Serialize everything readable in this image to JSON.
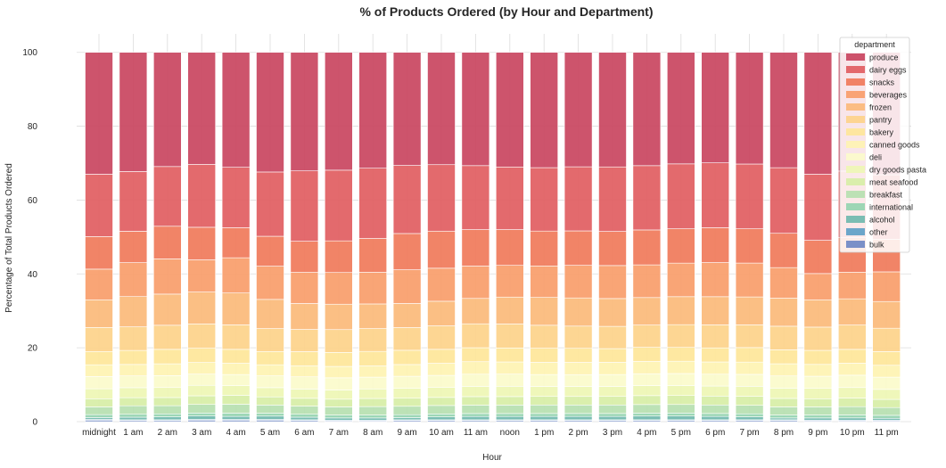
{
  "chart_data": {
    "type": "bar",
    "stacked": true,
    "title": "% of Products Ordered (by Hour and Department)",
    "xlabel": "Hour",
    "ylabel": "Percentage of Total Products Ordered",
    "ylim": [
      0,
      105
    ],
    "yticks": [
      0,
      20,
      40,
      60,
      80,
      100
    ],
    "grid": true,
    "legend_title": "department",
    "legend_position": "top-right",
    "categories": [
      "midnight",
      "1 am",
      "2 am",
      "3 am",
      "4 am",
      "5 am",
      "6 am",
      "7 am",
      "8 am",
      "9 am",
      "10 am",
      "11 am",
      "noon",
      "1 pm",
      "2 pm",
      "3 pm",
      "4 pm",
      "5 pm",
      "6 pm",
      "7 pm",
      "8 pm",
      "9 pm",
      "10 pm",
      "11 pm"
    ],
    "series": [
      {
        "name": "produce",
        "color": "#c9455f",
        "values": [
          33.0,
          32.3,
          30.8,
          29.9,
          31.0,
          32.4,
          32.0,
          32.0,
          31.5,
          30.9,
          30.6,
          30.8,
          31.1,
          31.1,
          30.9,
          30.9,
          30.5,
          29.9,
          29.8,
          30.0,
          31.3,
          33.0,
          31.7,
          33.0
        ]
      },
      {
        "name": "dairy eggs",
        "color": "#e15d61",
        "values": [
          16.9,
          16.2,
          16.1,
          16.8,
          16.3,
          17.4,
          19.0,
          19.2,
          19.1,
          18.6,
          18.1,
          17.4,
          17.0,
          17.1,
          17.3,
          17.4,
          17.3,
          17.4,
          17.5,
          17.4,
          17.8,
          17.9,
          17.7,
          17.4
        ]
      },
      {
        "name": "snacks",
        "color": "#f07a5a",
        "values": [
          8.8,
          8.5,
          8.8,
          8.7,
          8.1,
          8.1,
          8.4,
          8.6,
          9.2,
          9.9,
          10.1,
          9.9,
          9.7,
          9.4,
          9.3,
          9.2,
          9.4,
          9.2,
          9.4,
          9.2,
          9.3,
          9.0,
          9.3,
          8.8
        ]
      },
      {
        "name": "beverages",
        "color": "#f89d6a",
        "values": [
          8.3,
          9.2,
          9.5,
          8.6,
          9.5,
          9.0,
          8.4,
          8.6,
          8.6,
          9.2,
          9.0,
          8.8,
          8.6,
          8.5,
          8.8,
          8.9,
          8.8,
          9.0,
          9.2,
          9.1,
          8.3,
          7.1,
          7.1,
          8.0
        ]
      },
      {
        "name": "frozen",
        "color": "#fbba7a",
        "values": [
          7.5,
          8.2,
          8.4,
          8.5,
          8.6,
          7.9,
          7.0,
          6.9,
          6.7,
          6.6,
          6.7,
          6.9,
          7.3,
          7.5,
          7.6,
          7.5,
          7.4,
          7.5,
          7.6,
          7.5,
          7.6,
          7.4,
          7.0,
          7.2
        ]
      },
      {
        "name": "pantry",
        "color": "#fdd38a",
        "values": [
          6.5,
          6.4,
          6.5,
          6.5,
          6.6,
          6.2,
          6.0,
          6.2,
          6.2,
          6.2,
          6.4,
          6.5,
          6.5,
          6.2,
          6.0,
          6.0,
          6.0,
          6.1,
          6.2,
          6.1,
          6.4,
          6.3,
          6.5,
          6.3
        ]
      },
      {
        "name": "bakery",
        "color": "#fee699",
        "values": [
          3.6,
          3.8,
          3.9,
          3.8,
          3.7,
          3.6,
          3.8,
          3.8,
          3.9,
          3.9,
          3.8,
          3.8,
          3.8,
          3.8,
          3.8,
          3.7,
          3.8,
          3.7,
          3.8,
          3.9,
          3.8,
          3.8,
          3.7,
          3.7
        ]
      },
      {
        "name": "canned goods",
        "color": "#fef3b2",
        "values": [
          3.2,
          3.1,
          3.2,
          3.1,
          3.1,
          3.0,
          3.0,
          3.1,
          3.1,
          3.2,
          3.3,
          3.4,
          3.3,
          3.3,
          3.3,
          3.3,
          3.3,
          3.3,
          3.3,
          3.3,
          3.3,
          3.2,
          3.2,
          3.2
        ]
      },
      {
        "name": "deli",
        "color": "#fbfbcb",
        "values": [
          3.3,
          3.2,
          3.2,
          3.0,
          3.0,
          3.2,
          3.3,
          3.3,
          3.2,
          3.3,
          3.3,
          3.3,
          3.3,
          3.2,
          3.2,
          3.2,
          3.2,
          3.2,
          3.2,
          3.2,
          3.3,
          3.3,
          3.3,
          3.3
        ]
      },
      {
        "name": "dry goods pasta",
        "color": "#eef6b4",
        "values": [
          2.7,
          2.7,
          2.7,
          2.8,
          2.6,
          2.5,
          2.5,
          2.5,
          2.6,
          2.7,
          2.7,
          2.8,
          2.8,
          2.7,
          2.7,
          2.7,
          2.7,
          2.7,
          2.7,
          2.7,
          2.8,
          2.8,
          2.8,
          2.7
        ]
      },
      {
        "name": "meat seafood",
        "color": "#d7eea6",
        "values": [
          2.2,
          2.2,
          2.2,
          2.3,
          2.4,
          2.2,
          2.1,
          2.1,
          2.2,
          2.2,
          2.2,
          2.3,
          2.3,
          2.3,
          2.3,
          2.3,
          2.4,
          2.4,
          2.4,
          2.4,
          2.3,
          2.2,
          2.3,
          2.2
        ]
      },
      {
        "name": "breakfast",
        "color": "#b6e0b0",
        "values": [
          2.1,
          2.3,
          2.2,
          2.3,
          2.4,
          2.2,
          2.2,
          2.2,
          2.3,
          2.3,
          2.3,
          2.3,
          2.3,
          2.3,
          2.3,
          2.3,
          2.3,
          2.3,
          2.3,
          2.3,
          2.2,
          2.2,
          2.2,
          2.1
        ]
      },
      {
        "name": "international",
        "color": "#95d4b0",
        "values": [
          0.8,
          0.8,
          0.8,
          0.8,
          0.9,
          0.8,
          0.8,
          0.8,
          0.8,
          0.8,
          0.8,
          0.8,
          0.8,
          0.8,
          0.8,
          0.8,
          0.8,
          0.8,
          0.8,
          0.8,
          0.8,
          0.8,
          0.8,
          0.8
        ]
      },
      {
        "name": "alcohol",
        "color": "#70b8ae",
        "values": [
          0.5,
          0.7,
          0.8,
          0.9,
          0.8,
          0.9,
          0.7,
          0.6,
          0.6,
          0.6,
          0.8,
          0.9,
          0.9,
          0.9,
          0.9,
          0.9,
          1.0,
          1.0,
          0.9,
          0.8,
          0.5,
          0.6,
          0.6,
          0.5
        ]
      },
      {
        "name": "other",
        "color": "#5f9fc7",
        "values": [
          0.2,
          0.2,
          0.2,
          0.2,
          0.2,
          0.2,
          0.2,
          0.2,
          0.2,
          0.2,
          0.2,
          0.2,
          0.2,
          0.2,
          0.2,
          0.2,
          0.2,
          0.2,
          0.2,
          0.2,
          0.2,
          0.2,
          0.2,
          0.2
        ]
      },
      {
        "name": "bulk",
        "color": "#6f88c4",
        "values": [
          0.4,
          0.3,
          0.3,
          0.4,
          0.4,
          0.4,
          0.3,
          0.2,
          0.2,
          0.3,
          0.3,
          0.3,
          0.3,
          0.3,
          0.3,
          0.3,
          0.3,
          0.3,
          0.3,
          0.3,
          0.3,
          0.2,
          0.2,
          0.2
        ]
      }
    ]
  }
}
